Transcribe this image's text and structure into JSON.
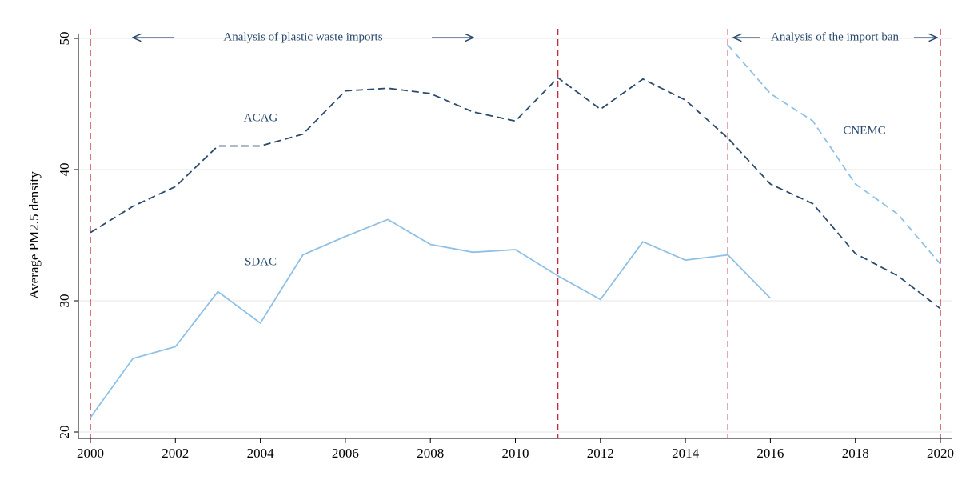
{
  "chart_data": {
    "type": "line",
    "y_label": "Average PM2.5 density",
    "x": [
      2000,
      2001,
      2002,
      2003,
      2004,
      2005,
      2006,
      2007,
      2008,
      2009,
      2010,
      2011,
      2012,
      2013,
      2014,
      2015,
      2016,
      2017,
      2018,
      2019,
      2020
    ],
    "series": [
      {
        "name": "ACAG",
        "color": "#2b4a6e",
        "dashed": true,
        "values": [
          35.2,
          37.2,
          38.7,
          41.8,
          41.8,
          42.7,
          46.0,
          46.2,
          45.8,
          44.4,
          43.7,
          47.0,
          44.6,
          46.9,
          45.3,
          42.4,
          38.9,
          37.4,
          33.6,
          31.9,
          29.4
        ]
      },
      {
        "name": "SDAC",
        "color": "#8fc0e6",
        "dashed": false,
        "values": [
          21.1,
          25.6,
          26.5,
          30.7,
          28.3,
          33.5,
          34.9,
          36.2,
          34.3,
          33.7,
          33.9,
          31.9,
          30.1,
          34.5,
          33.1,
          33.5,
          30.2,
          null,
          null,
          null,
          null
        ]
      },
      {
        "name": "CNEMC",
        "color": "#8fc0e6",
        "dashed": true,
        "values": [
          null,
          null,
          null,
          null,
          null,
          null,
          null,
          null,
          null,
          null,
          null,
          null,
          null,
          null,
          null,
          49.5,
          45.8,
          43.7,
          38.9,
          36.6,
          32.8
        ]
      }
    ],
    "annotations": [
      "Analysis of plastic waste imports",
      "Analysis of the import ban"
    ],
    "vlines": [
      2000,
      2011,
      2015,
      2020
    ],
    "vline_color": "#c8283c",
    "xlim": [
      2000,
      2020
    ],
    "xticks": [
      2000,
      2002,
      2004,
      2006,
      2008,
      2010,
      2012,
      2014,
      2016,
      2018,
      2020
    ],
    "ylim": [
      20,
      50
    ],
    "yticks": [
      20,
      30,
      40,
      50
    ],
    "grid": true
  }
}
